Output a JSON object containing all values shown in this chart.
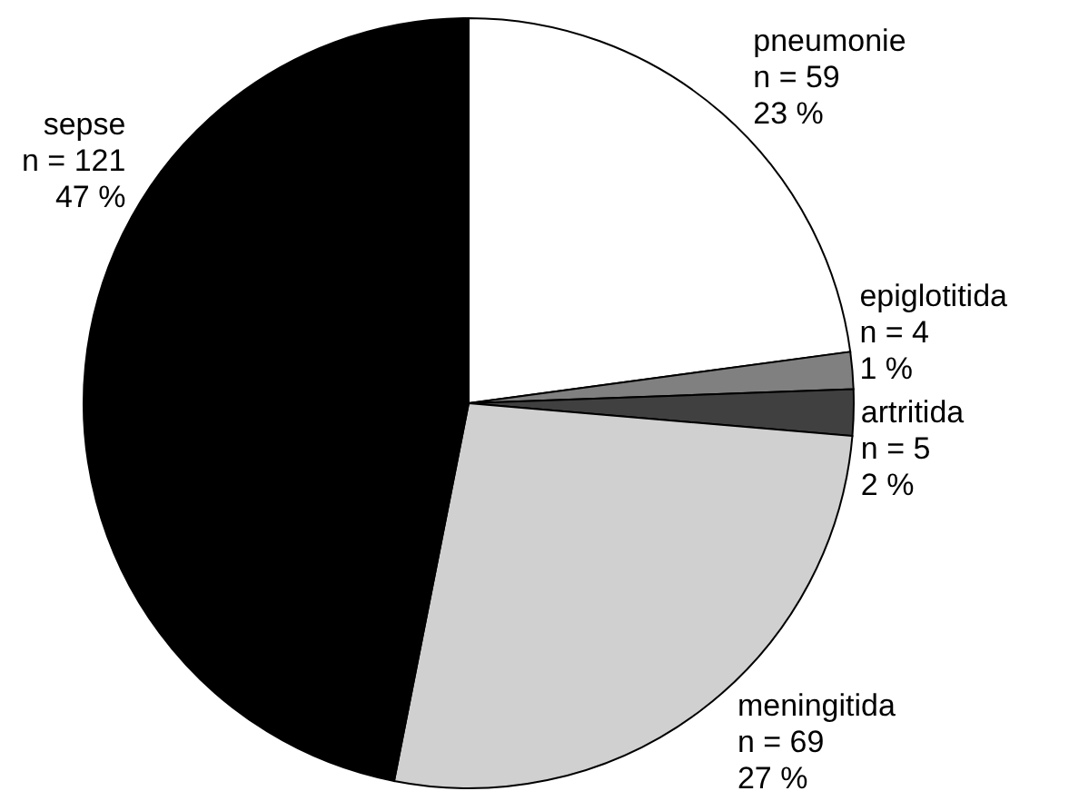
{
  "chart_data": {
    "type": "pie",
    "categories": [
      "pneumonie",
      "epiglotitida",
      "artritida",
      "meningitida",
      "sepse"
    ],
    "values": [
      59,
      4,
      5,
      69,
      121
    ],
    "value_labels": [
      "n = 59\n23 %",
      "n = 4\n1 %",
      "n = 5\n2 %",
      "n = 69\n27 %",
      "n = 121\n47 %"
    ],
    "colors": [
      "#ffffff",
      "#808080",
      "#404040",
      "#d0d0d0",
      "#000000"
    ]
  }
}
